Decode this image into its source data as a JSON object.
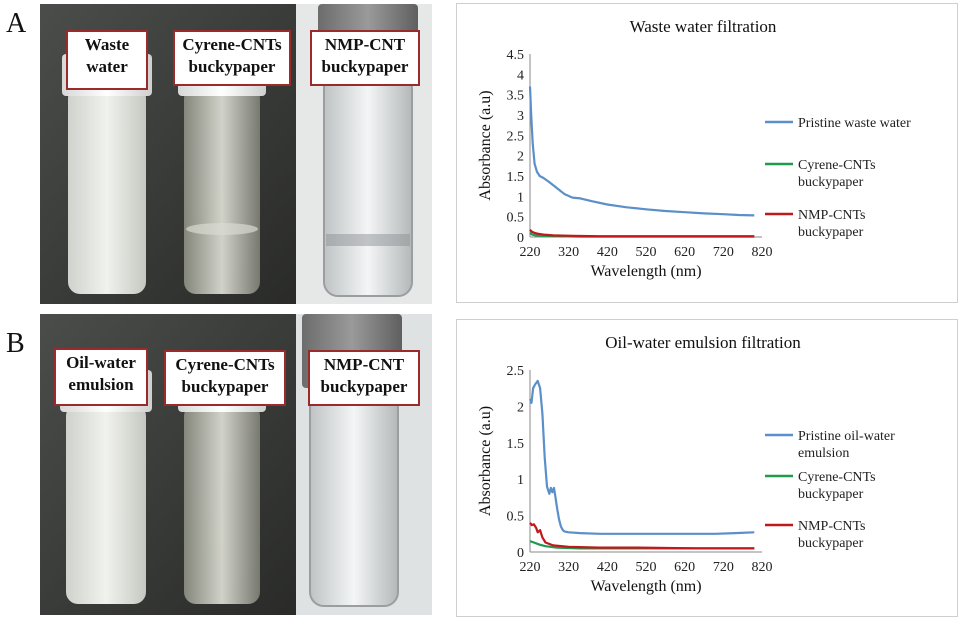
{
  "panels": [
    {
      "letter": "A",
      "vial_labels": [
        "Waste water",
        "Cyrene-CNTs buckypaper",
        "NMP-CNT buckypaper"
      ],
      "vial_label_lines": [
        [
          "Waste",
          "water"
        ],
        [
          "Cyrene-CNTs",
          "buckypaper"
        ],
        [
          "NMP-CNT",
          "buckypaper"
        ]
      ]
    },
    {
      "letter": "B",
      "vial_labels": [
        "Oil-water emulsion",
        "Cyrene-CNTs buckypaper",
        "NMP-CNT buckypaper"
      ],
      "vial_label_lines": [
        [
          "Oil-water",
          "emulsion"
        ],
        [
          "Cyrene-CNTs",
          "buckypaper"
        ],
        [
          "NMP-CNT",
          "buckypaper"
        ]
      ]
    }
  ],
  "colors": {
    "label_border": "#9b2a2a",
    "blue": "#5b8fc9",
    "green": "#1f9a4f",
    "red": "#c0191b"
  },
  "chart_data": [
    {
      "type": "line",
      "title": "Waste water filtration",
      "xlabel": "Wavelength (nm)",
      "ylabel": "Absorbance (a.u)",
      "xlim": [
        220,
        820
      ],
      "ylim": [
        0,
        4.5
      ],
      "xticks": [
        "220",
        "320",
        "420",
        "520",
        "620",
        "720",
        "820"
      ],
      "yticks": [
        "0",
        "0.5",
        "1",
        "1.5",
        "2",
        "2.5",
        "3",
        "3.5",
        "4",
        "4.5"
      ],
      "grid": false,
      "legend": "right",
      "series": [
        {
          "name": "Pristine waste water",
          "legend_lines": [
            "Pristine waste water"
          ],
          "color": "#5b8fc9",
          "x": [
            220,
            223,
            227,
            232,
            238,
            245,
            255,
            270,
            290,
            310,
            330,
            350,
            380,
            420,
            470,
            520,
            570,
            620,
            670,
            720,
            760,
            800
          ],
          "y": [
            3.7,
            3.0,
            2.3,
            1.8,
            1.6,
            1.5,
            1.45,
            1.35,
            1.2,
            1.05,
            0.97,
            0.95,
            0.88,
            0.8,
            0.73,
            0.68,
            0.64,
            0.61,
            0.58,
            0.56,
            0.54,
            0.53
          ]
        },
        {
          "name": "Cyrene-CNTs buckypaper",
          "legend_lines": [
            "Cyrene-CNTs",
            "buckypaper"
          ],
          "color": "#1f9a4f",
          "x": [
            220,
            226,
            235,
            250,
            280,
            350,
            500,
            650,
            800
          ],
          "y": [
            0.1,
            0.06,
            0.04,
            0.03,
            0.02,
            0.01,
            0.01,
            0.01,
            0.01
          ]
        },
        {
          "name": "NMP-CNTs buckypaper",
          "legend_lines": [
            "NMP-CNTs",
            "buckypaper"
          ],
          "color": "#c0191b",
          "x": [
            220,
            225,
            232,
            240,
            255,
            280,
            330,
            400,
            500,
            650,
            800
          ],
          "y": [
            0.18,
            0.13,
            0.1,
            0.08,
            0.06,
            0.04,
            0.03,
            0.02,
            0.02,
            0.02,
            0.02
          ]
        }
      ]
    },
    {
      "type": "line",
      "title": "Oil-water emulsion filtration",
      "xlabel": "Wavelength (nm)",
      "ylabel": "Absorbance (a.u)",
      "xlim": [
        220,
        820
      ],
      "ylim": [
        0,
        2.5
      ],
      "xticks": [
        "220",
        "320",
        "420",
        "520",
        "620",
        "720",
        "820"
      ],
      "yticks": [
        "0",
        "0.5",
        "1",
        "1.5",
        "2",
        "2.5"
      ],
      "grid": false,
      "legend": "right",
      "series": [
        {
          "name": "Pristine oil-water emulsion",
          "legend_lines": [
            "Pristine oil-water",
            "emulsion"
          ],
          "color": "#5b8fc9",
          "x": [
            220,
            224,
            228,
            233,
            240,
            246,
            252,
            258,
            264,
            270,
            274,
            278,
            282,
            286,
            290,
            295,
            300,
            305,
            310,
            320,
            350,
            400,
            500,
            600,
            700,
            750,
            800
          ],
          "y": [
            2.1,
            2.05,
            2.25,
            2.3,
            2.35,
            2.25,
            1.9,
            1.3,
            0.9,
            0.8,
            0.88,
            0.82,
            0.88,
            0.75,
            0.6,
            0.45,
            0.35,
            0.3,
            0.28,
            0.27,
            0.26,
            0.25,
            0.25,
            0.25,
            0.25,
            0.26,
            0.27
          ]
        },
        {
          "name": "Cyrene-CNTs buckypaper",
          "legend_lines": [
            "Cyrene-CNTs",
            "buckypaper"
          ],
          "color": "#1f9a4f",
          "x": [
            220,
            230,
            245,
            260,
            290,
            350,
            500,
            650,
            800
          ],
          "y": [
            0.15,
            0.13,
            0.1,
            0.08,
            0.06,
            0.05,
            0.05,
            0.05,
            0.05
          ]
        },
        {
          "name": "NMP-CNTs buckypaper",
          "legend_lines": [
            "NMP-CNTs",
            "buckypaper"
          ],
          "color": "#c0191b",
          "x": [
            220,
            225,
            230,
            236,
            240,
            246,
            252,
            260,
            280,
            320,
            400,
            500,
            650,
            800
          ],
          "y": [
            0.4,
            0.37,
            0.38,
            0.33,
            0.27,
            0.3,
            0.2,
            0.13,
            0.09,
            0.07,
            0.06,
            0.06,
            0.05,
            0.05
          ]
        }
      ]
    }
  ]
}
